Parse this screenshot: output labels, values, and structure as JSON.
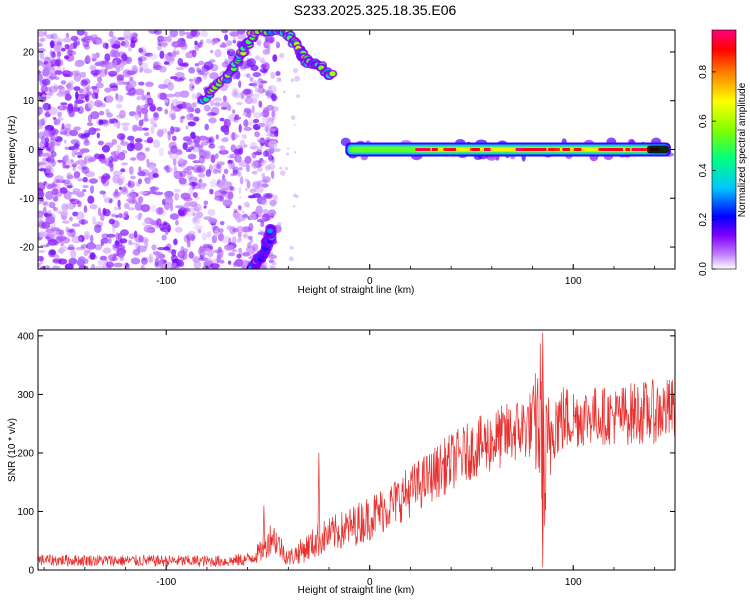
{
  "title": "S233.2025.325.18.35.E06",
  "chart_data": [
    {
      "type": "heatmap",
      "title": "S233.2025.325.18.35.E06",
      "xlabel": "Height of straight line (km)",
      "ylabel": "Frequency (Hz)",
      "xlim": [
        -163,
        150
      ],
      "ylim": [
        -24.5,
        24.5
      ],
      "x_ticks": [
        -100,
        0,
        100
      ],
      "x_tick_labels": [
        "-100",
        "0",
        "100"
      ],
      "y_ticks": [
        -20,
        -10,
        0,
        10,
        20
      ],
      "y_tick_labels": [
        "-20",
        "-10",
        "0",
        "10",
        "20"
      ],
      "colorbar": {
        "label": "Normalized spectral amplitude",
        "range": [
          0,
          0.97
        ],
        "ticks": [
          0,
          0.2,
          0.4,
          0.6,
          0.8
        ],
        "tick_labels": [
          "0.0",
          "0.2",
          "0.4",
          "0.6",
          "0.8"
        ],
        "colormap": [
          "#ffffff",
          "#8000ff",
          "#0000ff",
          "#00c8ff",
          "#00ff80",
          "#80ff00",
          "#ffff00",
          "#ff8000",
          "#ff0000",
          "#ff0080"
        ]
      },
      "features": [
        {
          "name": "noise-field",
          "x_range": [
            -163,
            -45
          ],
          "freq_range": [
            -24.5,
            24.5
          ],
          "amplitude": 0.1
        },
        {
          "name": "aliased-ridge-upper",
          "points": [
            [
              -82,
              10
            ],
            [
              -70,
              15
            ],
            [
              -62,
              20
            ],
            [
              -56,
              24.5
            ],
            [
              -42,
              24.5
            ],
            [
              -35,
              21
            ],
            [
              -31,
              18
            ],
            [
              -25,
              17
            ],
            [
              -18,
              15
            ]
          ],
          "amplitude": 0.6
        },
        {
          "name": "aliased-ridge-lower",
          "points": [
            [
              -58,
              -24.5
            ],
            [
              -53,
              -22
            ],
            [
              -50,
              -19
            ],
            [
              -48,
              -16
            ]
          ],
          "amplitude": 0.3
        },
        {
          "name": "main-tone",
          "x_range": [
            -12,
            148
          ],
          "frequency": 0,
          "amplitude": 0.95
        }
      ]
    },
    {
      "type": "line",
      "xlabel": "Height of straight line (km)",
      "ylabel": "SNR (10 * v/v)",
      "xlim": [
        -163,
        150
      ],
      "ylim": [
        0,
        410
      ],
      "x_ticks": [
        -100,
        0,
        100
      ],
      "x_tick_labels": [
        "-100",
        "0",
        "100"
      ],
      "y_ticks": [
        0,
        100,
        200,
        300,
        400
      ],
      "y_tick_labels": [
        "0",
        "100",
        "200",
        "300",
        "400"
      ],
      "color": "#e8312f",
      "series": [
        {
          "name": "SNR envelope",
          "x": [
            -163,
            -120,
            -70,
            -60,
            -52,
            -48,
            -45,
            -40,
            -35,
            -30,
            -25,
            -20,
            -10,
            0,
            10,
            20,
            30,
            40,
            50,
            60,
            70,
            80,
            84,
            86,
            90,
            100,
            110,
            120,
            130,
            140,
            150
          ],
          "mean": [
            17,
            16,
            15,
            18,
            35,
            60,
            45,
            20,
            30,
            40,
            52,
            60,
            72,
            90,
            110,
            135,
            160,
            185,
            205,
            220,
            235,
            250,
            255,
            150,
            255,
            260,
            265,
            262,
            268,
            270,
            275
          ],
          "noise": [
            10,
            10,
            10,
            12,
            20,
            30,
            25,
            15,
            20,
            25,
            30,
            30,
            35,
            40,
            40,
            45,
            45,
            50,
            50,
            55,
            55,
            60,
            150,
            150,
            70,
            55,
            50,
            50,
            55,
            55,
            55
          ]
        }
      ],
      "annotations": [
        {
          "x": -52,
          "y": 110,
          "label": ""
        },
        {
          "x": -25,
          "y": 200,
          "label": ""
        },
        {
          "x": 85,
          "y": 405,
          "label": ""
        },
        {
          "x": 85,
          "y": 5,
          "label": ""
        }
      ]
    }
  ]
}
